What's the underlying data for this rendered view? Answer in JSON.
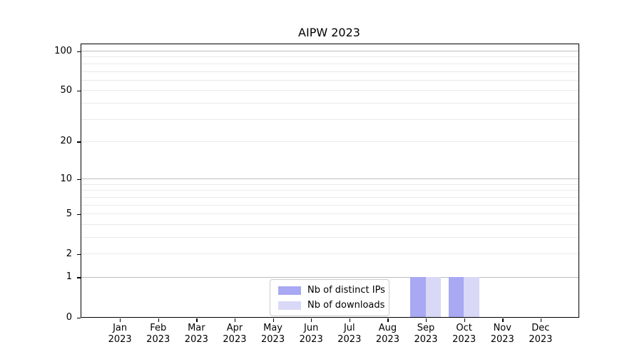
{
  "chart_data": {
    "type": "bar",
    "title": "AIPW 2023",
    "xlabel": "",
    "ylabel": "",
    "categories": [
      "Jan 2023",
      "Feb 2023",
      "Mar 2023",
      "Apr 2023",
      "May 2023",
      "Jun 2023",
      "Jul 2023",
      "Aug 2023",
      "Sep 2023",
      "Oct 2023",
      "Nov 2023",
      "Dec 2023"
    ],
    "series": [
      {
        "name": "Nb of distinct IPs",
        "color": "#a8a8f3",
        "values": [
          0,
          0,
          0,
          0,
          0,
          0,
          0,
          0,
          1,
          1,
          0,
          0
        ]
      },
      {
        "name": "Nb of downloads",
        "color": "#d9d9f7",
        "values": [
          0,
          0,
          0,
          0,
          0,
          0,
          0,
          0,
          1,
          1,
          0,
          0
        ]
      }
    ],
    "yscale": "log10(1+y)",
    "ylim": [
      0,
      112
    ],
    "ytick_values": [
      0,
      1,
      2,
      5,
      10,
      20,
      50,
      100
    ],
    "ytick_labels": [
      "0",
      "1",
      "2",
      "5",
      "10",
      "20",
      "50",
      "100"
    ],
    "gridlines": {
      "major": [
        1,
        10,
        100
      ],
      "minor": [
        2,
        3,
        4,
        5,
        6,
        7,
        8,
        9,
        20,
        30,
        40,
        50,
        60,
        70,
        80,
        90
      ],
      "major_color": "#bdbdbd",
      "minor_color": "#e9e9e9"
    },
    "legend": {
      "position": "lower center",
      "entries": [
        "Nb of distinct IPs",
        "Nb of downloads"
      ]
    },
    "axis_color": "#000000",
    "background_color": "#ffffff"
  }
}
